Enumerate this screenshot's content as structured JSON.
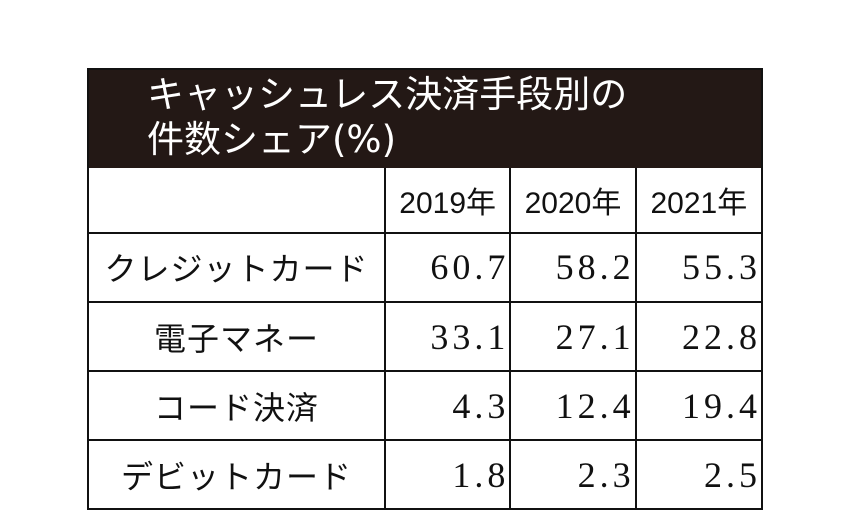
{
  "chart_data": {
    "type": "table",
    "title": "キャッシュレス決済手段別の件数シェア(%)",
    "title_lines": [
      "キャッシュレス決済手段別の",
      "件数シェア(%)"
    ],
    "columns": [
      "2019年",
      "2020年",
      "2021年"
    ],
    "rows": [
      {
        "label": "クレジットカード",
        "values": [
          "60.7",
          "58.2",
          "55.3"
        ]
      },
      {
        "label": "電子マネー",
        "values": [
          "33.1",
          "27.1",
          "22.8"
        ]
      },
      {
        "label": "コード決済",
        "values": [
          "4.3",
          "12.4",
          "19.4"
        ]
      },
      {
        "label": "デビットカード",
        "values": [
          "1.8",
          "2.3",
          "2.5"
        ]
      }
    ]
  },
  "colors": {
    "header_background": "#231815",
    "header_text": "#ffffff",
    "border": "#111111",
    "text": "#111111"
  }
}
